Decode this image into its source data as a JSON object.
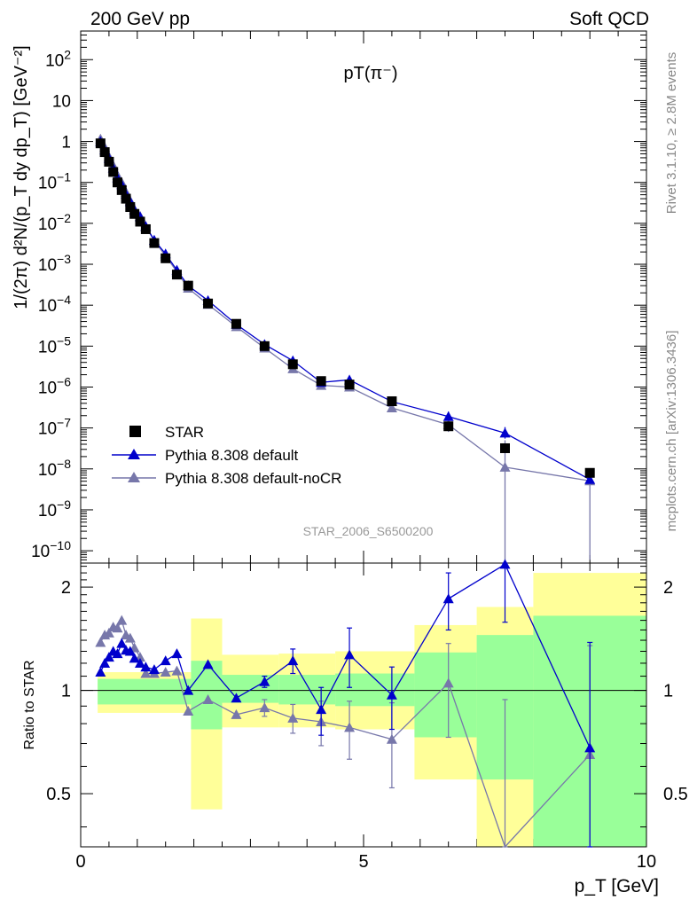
{
  "header": {
    "left": "200 GeV pp",
    "right": "Soft QCD"
  },
  "side": {
    "rivet": "Rivet 3.1.10, ≥ 2.8M events",
    "mcplots": "mcplots.cern.ch [arXiv:1306.3436]"
  },
  "chart_data": {
    "type": "scatter",
    "title": "pT(π⁻)",
    "analysis": "STAR_2006_S6500200",
    "xlabel": "p_T [GeV]",
    "ylabel": "1/(2π) d²N/(p_T dy dp_T) [GeV⁻²]",
    "ratio_ylabel": "Ratio to STAR",
    "xlim": [
      0,
      10
    ],
    "ylim": [
      5e-11,
      500
    ],
    "log_y": true,
    "ratio_ylim": [
      0.35,
      2.35
    ],
    "x_ticks": [
      0,
      5,
      10
    ],
    "y_ticks": [
      {
        "v": 1e-10,
        "t": "10",
        "e": "−10"
      },
      {
        "v": 1e-09,
        "t": "10",
        "e": "−9"
      },
      {
        "v": 1e-08,
        "t": "10",
        "e": "−8"
      },
      {
        "v": 1e-07,
        "t": "10",
        "e": "−7"
      },
      {
        "v": 1e-06,
        "t": "10",
        "e": "−6"
      },
      {
        "v": 1e-05,
        "t": "10",
        "e": "−5"
      },
      {
        "v": 0.0001,
        "t": "10",
        "e": "−4"
      },
      {
        "v": 0.001,
        "t": "10",
        "e": "−3"
      },
      {
        "v": 0.01,
        "t": "10",
        "e": "−2"
      },
      {
        "v": 0.1,
        "t": "10",
        "e": "−1"
      },
      {
        "v": 1,
        "t": "1",
        "e": ""
      },
      {
        "v": 10,
        "t": "10",
        "e": ""
      },
      {
        "v": 100,
        "t": "10",
        "e": "2"
      }
    ],
    "ratio_ticks": [
      0.5,
      1,
      2
    ],
    "legend": [
      {
        "name": "STAR",
        "marker": "square",
        "color": "#000000"
      },
      {
        "name": "Pythia 8.308 default",
        "marker": "triangle",
        "color": "#0000cc"
      },
      {
        "name": "Pythia 8.308 default-noCR",
        "marker": "triangle",
        "color": "#7777aa"
      }
    ],
    "star": [
      [
        0.35,
        0.9
      ],
      [
        0.425,
        0.55
      ],
      [
        0.5,
        0.32
      ],
      [
        0.575,
        0.18
      ],
      [
        0.65,
        0.1
      ],
      [
        0.725,
        0.065
      ],
      [
        0.8,
        0.04
      ],
      [
        0.875,
        0.025
      ],
      [
        0.95,
        0.017
      ],
      [
        1.05,
        0.011
      ],
      [
        1.15,
        0.0072
      ],
      [
        1.3,
        0.0033
      ],
      [
        1.5,
        0.0014
      ],
      [
        1.7,
        0.00056
      ],
      [
        1.9,
        0.0003
      ],
      [
        2.25,
        0.00011
      ],
      [
        2.75,
        3.5e-05
      ],
      [
        3.25,
        1e-05
      ],
      [
        3.75,
        3.6e-06
      ],
      [
        4.25,
        1.4e-06
      ],
      [
        4.75,
        1.15e-06
      ],
      [
        5.5,
        4.5e-07
      ],
      [
        6.5,
        1.1e-07
      ],
      [
        7.5,
        3.2e-08
      ],
      [
        9.0,
        8e-09
      ]
    ],
    "series": [
      {
        "name": "Pythia 8.308 default",
        "color": "#0000cc",
        "points": [
          [
            0.35,
            1.0
          ],
          [
            0.425,
            0.62
          ],
          [
            0.5,
            0.39
          ],
          [
            0.575,
            0.225
          ],
          [
            0.65,
            0.13
          ],
          [
            0.725,
            0.088
          ],
          [
            0.8,
            0.052
          ],
          [
            0.875,
            0.034
          ],
          [
            0.95,
            0.021
          ],
          [
            1.05,
            0.0145
          ],
          [
            1.15,
            0.0085
          ],
          [
            1.3,
            0.0039
          ],
          [
            1.5,
            0.0018
          ],
          [
            1.7,
            0.00072
          ],
          [
            1.9,
            0.0003
          ],
          [
            2.25,
            0.00013
          ],
          [
            2.75,
            3.4e-05
          ],
          [
            3.25,
            1.1e-05
          ],
          [
            3.75,
            4.4e-06
          ],
          [
            4.25,
            1.3e-06
          ],
          [
            4.75,
            1.5e-06
          ],
          [
            5.5,
            4.4e-07
          ],
          [
            6.5,
            1.9e-07
          ],
          [
            7.5,
            7.5e-08
          ],
          [
            9.0,
            5.5e-09
          ]
        ],
        "ratio": [
          [
            0.35,
            1.13
          ],
          [
            0.425,
            1.2
          ],
          [
            0.5,
            1.25
          ],
          [
            0.575,
            1.3
          ],
          [
            0.65,
            1.28
          ],
          [
            0.725,
            1.37
          ],
          [
            0.8,
            1.31
          ],
          [
            0.875,
            1.3
          ],
          [
            0.95,
            1.24
          ],
          [
            1.05,
            1.2
          ],
          [
            1.15,
            1.17
          ],
          [
            1.3,
            1.15
          ],
          [
            1.5,
            1.22
          ],
          [
            1.7,
            1.28
          ],
          [
            1.9,
            1.0
          ],
          [
            2.25,
            1.19
          ],
          [
            2.75,
            0.95
          ],
          [
            3.25,
            1.06
          ],
          [
            3.75,
            1.22
          ],
          [
            4.25,
            0.88
          ],
          [
            4.75,
            1.27
          ],
          [
            5.5,
            0.97
          ],
          [
            6.5,
            1.85
          ],
          [
            7.5,
            2.33
          ],
          [
            9.0,
            0.68
          ]
        ],
        "ratio_err": [
          [
            3.25,
            0.04
          ],
          [
            3.75,
            0.1
          ],
          [
            4.25,
            0.14
          ],
          [
            4.75,
            0.25
          ],
          [
            5.5,
            0.2
          ],
          [
            6.5,
            0.35
          ],
          [
            7.5,
            0.75
          ],
          [
            9.0,
            0.7
          ]
        ]
      },
      {
        "name": "Pythia 8.308 default-noCR",
        "color": "#7777aa",
        "points": [
          [
            0.35,
            1.15
          ],
          [
            0.425,
            0.72
          ],
          [
            0.5,
            0.43
          ],
          [
            0.575,
            0.26
          ],
          [
            0.65,
            0.15
          ],
          [
            0.725,
            0.1
          ],
          [
            0.8,
            0.058
          ],
          [
            0.875,
            0.036
          ],
          [
            0.95,
            0.022
          ],
          [
            1.05,
            0.015
          ],
          [
            1.15,
            0.0082
          ],
          [
            1.3,
            0.0038
          ],
          [
            1.5,
            0.0016
          ],
          [
            1.7,
            0.00066
          ],
          [
            1.9,
            0.00026
          ],
          [
            2.25,
            0.000105
          ],
          [
            2.75,
            3e-05
          ],
          [
            3.25,
            9e-06
          ],
          [
            3.75,
            2.8e-06
          ],
          [
            4.25,
            1.1e-06
          ],
          [
            4.75,
            1e-06
          ],
          [
            5.5,
            3.1e-07
          ],
          [
            6.5,
            1.2e-07
          ],
          [
            7.5,
            1.1e-08
          ],
          [
            9.0,
            5.1e-09
          ]
        ],
        "ratio": [
          [
            0.35,
            1.38
          ],
          [
            0.425,
            1.45
          ],
          [
            0.5,
            1.47
          ],
          [
            0.575,
            1.53
          ],
          [
            0.65,
            1.52
          ],
          [
            0.725,
            1.6
          ],
          [
            0.8,
            1.45
          ],
          [
            0.875,
            1.42
          ],
          [
            0.95,
            1.33
          ],
          [
            1.05,
            1.25
          ],
          [
            1.15,
            1.12
          ],
          [
            1.3,
            1.12
          ],
          [
            1.5,
            1.13
          ],
          [
            1.7,
            1.14
          ],
          [
            1.9,
            0.87
          ],
          [
            2.25,
            0.94
          ],
          [
            2.75,
            0.85
          ],
          [
            3.25,
            0.89
          ],
          [
            3.75,
            0.83
          ],
          [
            4.25,
            0.81
          ],
          [
            4.75,
            0.78
          ],
          [
            5.5,
            0.72
          ],
          [
            6.5,
            1.05
          ],
          [
            7.5,
            0.34
          ],
          [
            9.0,
            0.65
          ]
        ],
        "ratio_err": [
          [
            3.25,
            0.05
          ],
          [
            3.75,
            0.08
          ],
          [
            4.25,
            0.12
          ],
          [
            4.75,
            0.15
          ],
          [
            5.5,
            0.2
          ],
          [
            6.5,
            0.32
          ],
          [
            7.5,
            0.6
          ],
          [
            9.0,
            0.7
          ]
        ]
      }
    ],
    "main_err": [
      {
        "x": 6.5,
        "series": 0,
        "lo": 1.4e-07,
        "hi": 2.5e-07
      },
      {
        "x": 7.5,
        "series": 0,
        "lo": 5.5e-08,
        "hi": 1.05e-07
      },
      {
        "x": 7.5,
        "series": 1,
        "lo": 6e-11,
        "hi": 5e-08
      },
      {
        "x": 9.0,
        "series": 1,
        "lo": 6e-11,
        "hi": 8e-09
      },
      {
        "x": 6.5,
        "series": 1,
        "lo": 8e-08,
        "hi": 1.6e-07
      }
    ],
    "bands": [
      {
        "x0": 0.3,
        "x1": 1.95,
        "y_lo": 0.86,
        "y_hi": 1.13,
        "g_lo": 0.91,
        "g_hi": 1.08
      },
      {
        "x0": 1.95,
        "x1": 2.5,
        "y_lo": 0.45,
        "y_hi": 1.62,
        "g_lo": 0.77,
        "g_hi": 1.22
      },
      {
        "x0": 2.5,
        "x1": 3.5,
        "y_lo": 0.78,
        "y_hi": 1.27,
        "g_lo": 0.92,
        "g_hi": 1.11
      },
      {
        "x0": 3.5,
        "x1": 4.5,
        "y_lo": 0.78,
        "y_hi": 1.28,
        "g_lo": 0.91,
        "g_hi": 1.11
      },
      {
        "x0": 4.5,
        "x1": 5.9,
        "y_lo": 0.77,
        "y_hi": 1.3,
        "g_lo": 0.9,
        "g_hi": 1.12
      },
      {
        "x0": 5.9,
        "x1": 7.0,
        "y_lo": 0.55,
        "y_hi": 1.55,
        "g_lo": 0.73,
        "g_hi": 1.29
      },
      {
        "x0": 7.0,
        "x1": 8.0,
        "y_lo": 0.35,
        "y_hi": 1.75,
        "g_lo": 0.55,
        "g_hi": 1.45
      },
      {
        "x0": 8.0,
        "x1": 10.0,
        "y_lo": 0.35,
        "y_hi": 2.2,
        "g_lo": 0.35,
        "g_hi": 1.65
      }
    ],
    "band_colors": {
      "yellow": "#ffff99",
      "green": "#99ff99"
    }
  }
}
